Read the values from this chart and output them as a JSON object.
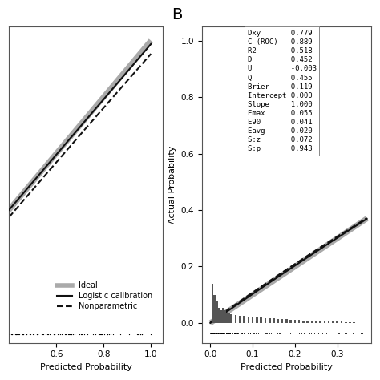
{
  "stats_labels": [
    "Dxy",
    "C (ROC)",
    "R2",
    "D",
    "U",
    "Q",
    "Brier",
    "Intercept",
    "Slope",
    "Emax",
    "E90",
    "Eavg",
    "S:z",
    "S:p"
  ],
  "stats_values": [
    "0.779",
    "0.889",
    "0.518",
    "0.452",
    "-0.003",
    "0.455",
    "0.119",
    "0.000",
    "1.000",
    "0.055",
    "0.041",
    "0.020",
    "0.072",
    "0.943"
  ],
  "xlabel_A": "Predicted Probability",
  "xlabel_B": "Predicted Probability",
  "ylabel_B": "Actual Probability",
  "xlim_A": [
    0.4,
    1.05
  ],
  "ylim_A": [
    -0.07,
    1.05
  ],
  "xlim_B": [
    -0.02,
    0.38
  ],
  "ylim_B": [
    -0.07,
    1.05
  ],
  "xticks_A": [
    0.6,
    0.8,
    1.0
  ],
  "yticks_A": [],
  "xticks_B": [
    0.0,
    0.1,
    0.2,
    0.3
  ],
  "yticks_B": [
    0.0,
    0.2,
    0.4,
    0.6,
    0.8,
    1.0
  ],
  "bg_color": "#ffffff",
  "ideal_color": "#aaaaaa",
  "line_color": "#111111",
  "bar_color": "#555555",
  "ideal_lw": 5,
  "cal_lw": 1.5,
  "nonparam_lw": 1.5,
  "legend_fontsize": 7,
  "stats_fontsize": 6.5,
  "tick_fontsize": 7.5,
  "label_fontsize": 8,
  "panel_label_fontsize": 14
}
